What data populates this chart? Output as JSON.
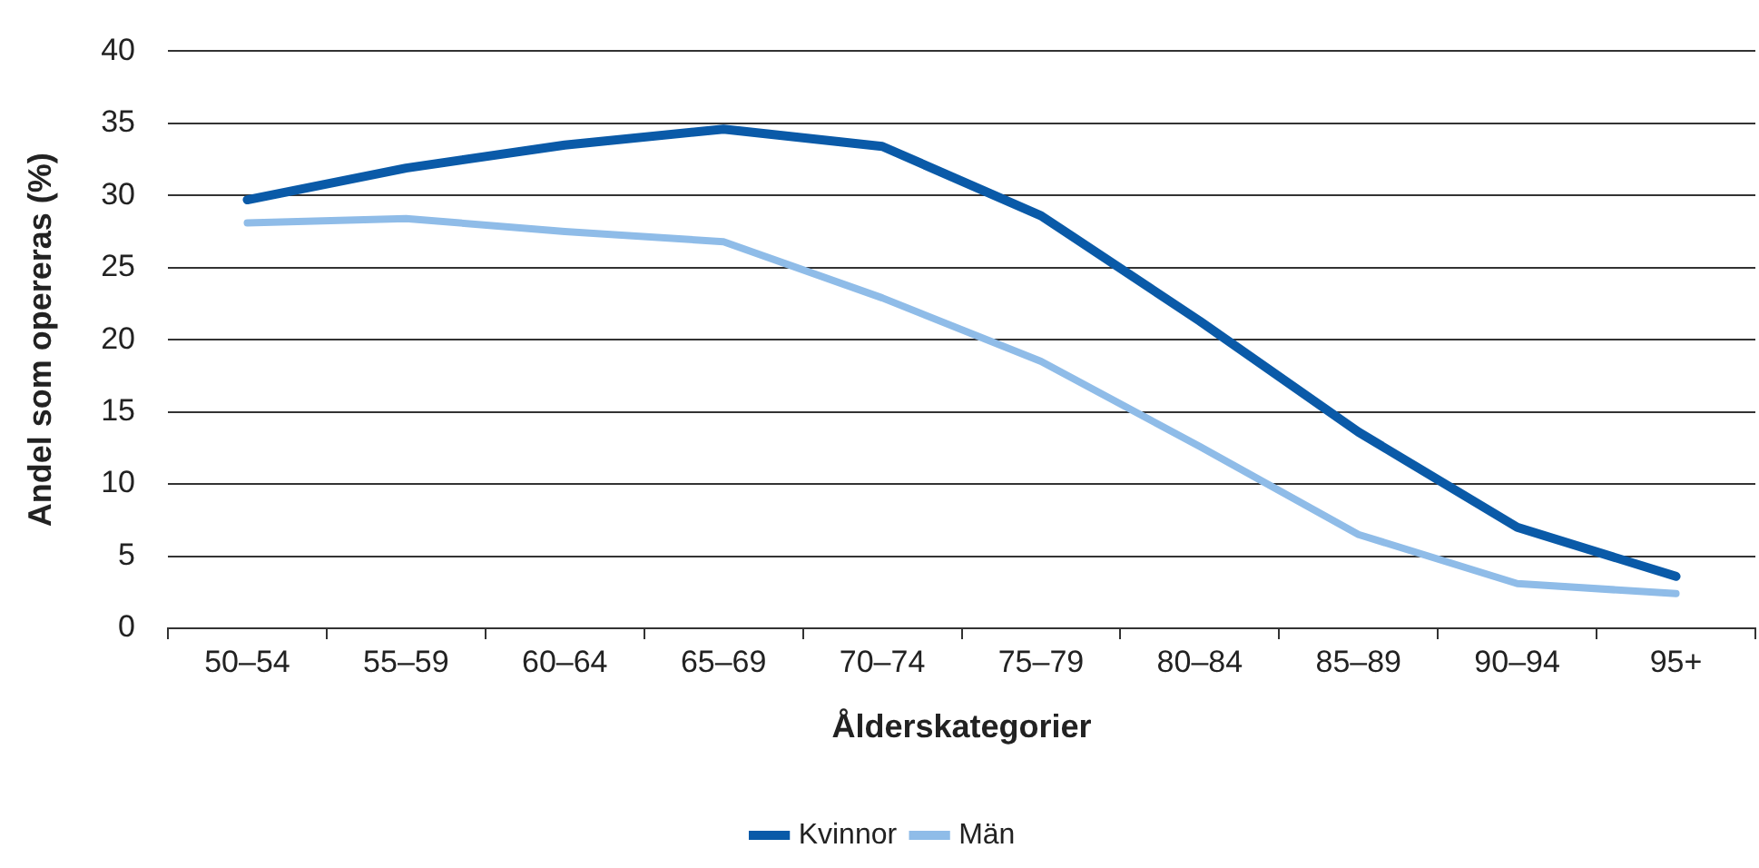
{
  "chart_data": {
    "type": "line",
    "xlabel": "Ålderskategorier",
    "ylabel": "Andel som opereras (%)",
    "categories": [
      "50–54",
      "55–59",
      "60–64",
      "65–69",
      "70–74",
      "75–79",
      "80–84",
      "85–89",
      "90–94",
      "95+"
    ],
    "series": [
      {
        "name": "Kvinnor",
        "color": "#0a5aa8",
        "values": [
          29.7,
          31.9,
          33.5,
          34.6,
          33.4,
          28.6,
          21.3,
          13.6,
          7.0,
          3.6
        ]
      },
      {
        "name": "Män",
        "color": "#8fbce8",
        "values": [
          28.1,
          28.4,
          27.5,
          26.8,
          22.9,
          18.5,
          12.6,
          6.5,
          3.1,
          2.4
        ]
      }
    ],
    "ylim": [
      0,
      40
    ],
    "yticks": [
      0,
      5,
      10,
      15,
      20,
      25,
      30,
      35,
      40
    ],
    "grid": "y",
    "legend": "bottom",
    "marker": "none",
    "line_style": "solid"
  }
}
